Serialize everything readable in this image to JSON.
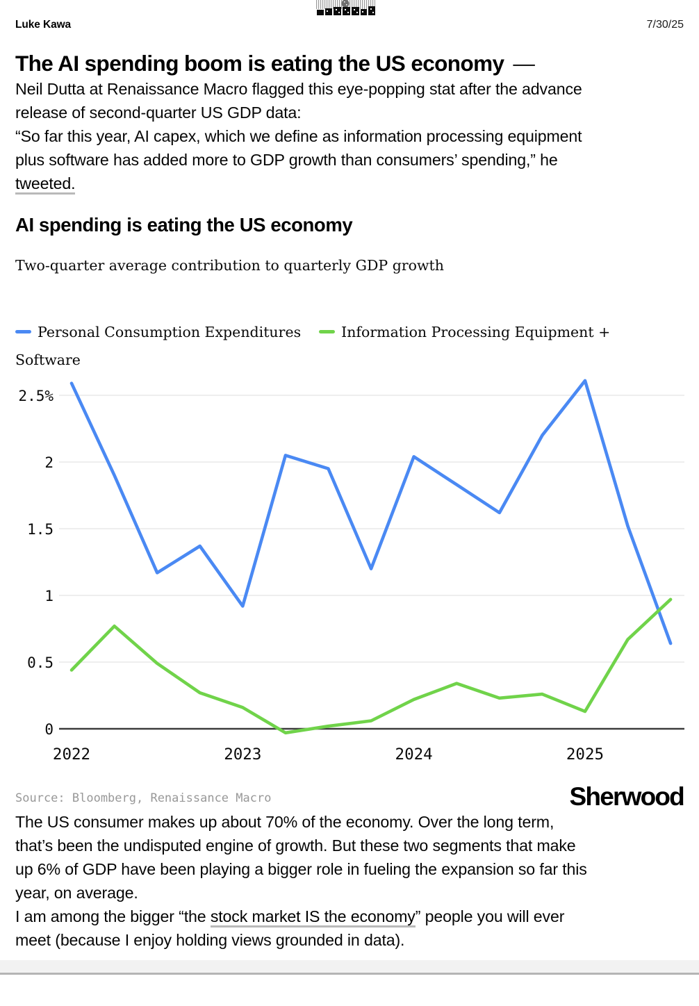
{
  "header": {
    "author": "Luke Kawa",
    "date": "7/30/25"
  },
  "article": {
    "title": "The AI spending boom is eating the US economy",
    "title_dash": "—",
    "p1": "Neil Dutta at Renaissance Macro flagged this eye-popping stat after the advance\nrelease of second-quarter US GDP data:",
    "p2_text": "“So far this year, AI capex, which we define as information processing equipment\nplus software has added more to GDP growth than consumers’ spending,” he\n",
    "p2_link": "tweeted.",
    "p3": "The US consumer makes up about 70% of the economy. Over the long term,\nthat’s been the undisputed engine of growth. But these two segments that make\nup 6% of GDP have been playing a bigger role in fueling the expansion so far this\nyear, on average.",
    "p4_pre": "I am among the bigger “the ",
    "p4_link": "stock market IS the economy",
    "p4_post": "” people you will ever\nmeet (because I enjoy holding views grounded in data)."
  },
  "chart": {
    "title": "AI spending is eating the US economy",
    "subtitle": "Two-quarter average contribution to quarterly GDP growth",
    "legend": [
      {
        "label": "Personal Consumption Expenditures",
        "color": "#4a89f3"
      },
      {
        "label": "Information Processing Equipment +\nSoftware",
        "color": "#70d34a"
      }
    ],
    "source": "Source: Bloomberg, Renaissance Macro",
    "logo": "Sherwood"
  },
  "chart_data": {
    "type": "line",
    "title": "AI spending is eating the US economy",
    "subtitle": "Two-quarter average contribution to quarterly GDP growth",
    "x": [
      "2022 Q1",
      "2022 Q2",
      "2022 Q3",
      "2022 Q4",
      "2023 Q1",
      "2023 Q2",
      "2023 Q3",
      "2023 Q4",
      "2024 Q1",
      "2024 Q2",
      "2024 Q3",
      "2024 Q4",
      "2025 Q1",
      "2025 Q2",
      "2025 Q3"
    ],
    "x_ticks": [
      {
        "i": 0,
        "label": "2022"
      },
      {
        "i": 4,
        "label": "2023"
      },
      {
        "i": 8,
        "label": "2024"
      },
      {
        "i": 12,
        "label": "2025"
      }
    ],
    "y_ticks": [
      {
        "v": 0,
        "label": "0"
      },
      {
        "v": 0.5,
        "label": "0.5"
      },
      {
        "v": 1,
        "label": "1"
      },
      {
        "v": 1.5,
        "label": "1.5"
      },
      {
        "v": 2,
        "label": "2"
      },
      {
        "v": 2.5,
        "label": "2.5%"
      }
    ],
    "ylim": [
      -0.1,
      2.7
    ],
    "grid": "horizontal",
    "legend_position": "top",
    "series": [
      {
        "name": "Personal Consumption Expenditures",
        "color": "#4a89f3",
        "values": [
          2.59,
          1.9,
          1.17,
          1.37,
          0.92,
          2.05,
          1.95,
          1.2,
          2.04,
          1.83,
          1.62,
          2.2,
          2.61,
          1.52,
          0.64
        ]
      },
      {
        "name": "Information Processing Equipment + Software",
        "color": "#70d34a",
        "values": [
          0.44,
          0.77,
          0.49,
          0.27,
          0.16,
          -0.03,
          0.02,
          0.06,
          0.22,
          0.34,
          0.23,
          0.26,
          0.13,
          0.67,
          0.97
        ]
      }
    ]
  }
}
